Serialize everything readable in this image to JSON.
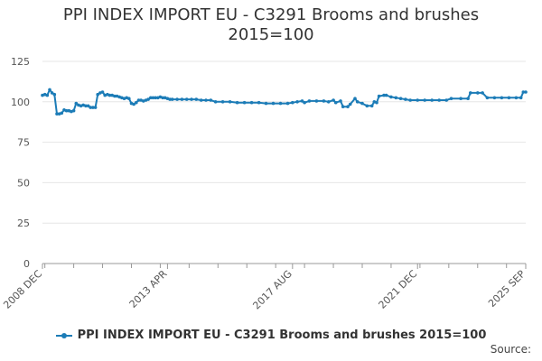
{
  "title_line1": "PPI INDEX IMPORT EU - C3291 Brooms and brushes",
  "title_line2": "2015=100",
  "source_label": "Source:",
  "colors": {
    "series": "#1c7cb7",
    "grid": "#e6e6e6",
    "axis": "#999999",
    "text": "#555555"
  },
  "chart_data": {
    "type": "line",
    "title": "PPI INDEX IMPORT EU - C3291 Brooms and brushes 2015=100",
    "xlabel": "",
    "ylabel": "",
    "ylim": [
      0,
      125
    ],
    "y_ticks": [
      0,
      25,
      50,
      75,
      100,
      125
    ],
    "x_ticks": [
      "2008 DEC",
      "2013 APR",
      "2017 AUG",
      "2021 DEC",
      "2025 SEP"
    ],
    "x_range": [
      "2008-12",
      "2025-09"
    ],
    "grid": "horizontal",
    "legend": "bottom",
    "series": [
      {
        "name": "PPI INDEX IMPORT EU - C3291 Brooms and brushes 2015=100",
        "points": [
          [
            "2008-12",
            104
          ],
          [
            "2009-01",
            104.5
          ],
          [
            "2009-02",
            104
          ],
          [
            "2009-03",
            107.5
          ],
          [
            "2009-04",
            105.5
          ],
          [
            "2009-05",
            104.5
          ],
          [
            "2009-06",
            92.5
          ],
          [
            "2009-07",
            92.5
          ],
          [
            "2009-08",
            93
          ],
          [
            "2009-09",
            95
          ],
          [
            "2009-10",
            94.5
          ],
          [
            "2009-11",
            94.5
          ],
          [
            "2009-12",
            94
          ],
          [
            "2010-01",
            94.5
          ],
          [
            "2010-02",
            99
          ],
          [
            "2010-03",
            98
          ],
          [
            "2010-04",
            97.5
          ],
          [
            "2010-05",
            98
          ],
          [
            "2010-06",
            97.5
          ],
          [
            "2010-07",
            97.5
          ],
          [
            "2010-08",
            96.5
          ],
          [
            "2010-09",
            96.5
          ],
          [
            "2010-10",
            96.5
          ],
          [
            "2010-11",
            104.5
          ],
          [
            "2010-12",
            105.5
          ],
          [
            "2011-01",
            106
          ],
          [
            "2011-02",
            104
          ],
          [
            "2011-03",
            104.5
          ],
          [
            "2011-04",
            104
          ],
          [
            "2011-05",
            104
          ],
          [
            "2011-06",
            103.5
          ],
          [
            "2011-07",
            103.5
          ],
          [
            "2011-08",
            103
          ],
          [
            "2011-09",
            102.5
          ],
          [
            "2011-10",
            102
          ],
          [
            "2011-11",
            102.5
          ],
          [
            "2011-12",
            102
          ],
          [
            "2012-01",
            99
          ],
          [
            "2012-02",
            98.5
          ],
          [
            "2012-03",
            99.5
          ],
          [
            "2012-04",
            101
          ],
          [
            "2012-05",
            101
          ],
          [
            "2012-06",
            100.5
          ],
          [
            "2012-07",
            101
          ],
          [
            "2012-08",
            101.5
          ],
          [
            "2012-09",
            102.5
          ],
          [
            "2012-10",
            102.5
          ],
          [
            "2012-11",
            102.5
          ],
          [
            "2012-12",
            102.5
          ],
          [
            "2013-01",
            103
          ],
          [
            "2013-02",
            102.5
          ],
          [
            "2013-03",
            102.5
          ],
          [
            "2013-04",
            102
          ],
          [
            "2013-05",
            101.5
          ],
          [
            "2013-06",
            101.5
          ],
          [
            "2013-08",
            101.5
          ],
          [
            "2013-10",
            101.5
          ],
          [
            "2013-12",
            101.5
          ],
          [
            "2014-02",
            101.5
          ],
          [
            "2014-04",
            101.5
          ],
          [
            "2014-06",
            101
          ],
          [
            "2014-08",
            101
          ],
          [
            "2014-10",
            101
          ],
          [
            "2014-12",
            100
          ],
          [
            "2015-03",
            100
          ],
          [
            "2015-06",
            100
          ],
          [
            "2015-09",
            99.5
          ],
          [
            "2015-12",
            99.5
          ],
          [
            "2016-03",
            99.5
          ],
          [
            "2016-06",
            99.5
          ],
          [
            "2016-09",
            99
          ],
          [
            "2016-12",
            99
          ],
          [
            "2017-03",
            99
          ],
          [
            "2017-06",
            99
          ],
          [
            "2017-08",
            99.5
          ],
          [
            "2017-10",
            100
          ],
          [
            "2017-12",
            100.5
          ],
          [
            "2018-01",
            99.5
          ],
          [
            "2018-03",
            100.5
          ],
          [
            "2018-06",
            100.5
          ],
          [
            "2018-09",
            100.5
          ],
          [
            "2018-11",
            100
          ],
          [
            "2019-01",
            101
          ],
          [
            "2019-02",
            99.5
          ],
          [
            "2019-04",
            100.5
          ],
          [
            "2019-05",
            97
          ],
          [
            "2019-07",
            97
          ],
          [
            "2019-08",
            98.5
          ],
          [
            "2019-10",
            102
          ],
          [
            "2019-11",
            100
          ],
          [
            "2020-01",
            99
          ],
          [
            "2020-03",
            97.5
          ],
          [
            "2020-05",
            97.5
          ],
          [
            "2020-06",
            100
          ],
          [
            "2020-07",
            99.5
          ],
          [
            "2020-08",
            103.5
          ],
          [
            "2020-10",
            104
          ],
          [
            "2020-11",
            104
          ],
          [
            "2021-01",
            103
          ],
          [
            "2021-03",
            102.5
          ],
          [
            "2021-05",
            102
          ],
          [
            "2021-07",
            101.5
          ],
          [
            "2021-09",
            101
          ],
          [
            "2021-12",
            101
          ],
          [
            "2022-03",
            101
          ],
          [
            "2022-06",
            101
          ],
          [
            "2022-09",
            101
          ],
          [
            "2022-12",
            101
          ],
          [
            "2023-02",
            102
          ],
          [
            "2023-06",
            102
          ],
          [
            "2023-09",
            102
          ],
          [
            "2023-10",
            105.5
          ],
          [
            "2024-01",
            105.5
          ],
          [
            "2024-03",
            105.5
          ],
          [
            "2024-05",
            102.5
          ],
          [
            "2024-08",
            102.5
          ],
          [
            "2024-11",
            102.5
          ],
          [
            "2025-02",
            102.5
          ],
          [
            "2025-05",
            102.5
          ],
          [
            "2025-07",
            102.5
          ],
          [
            "2025-08",
            106
          ],
          [
            "2025-09",
            106
          ]
        ]
      }
    ]
  }
}
